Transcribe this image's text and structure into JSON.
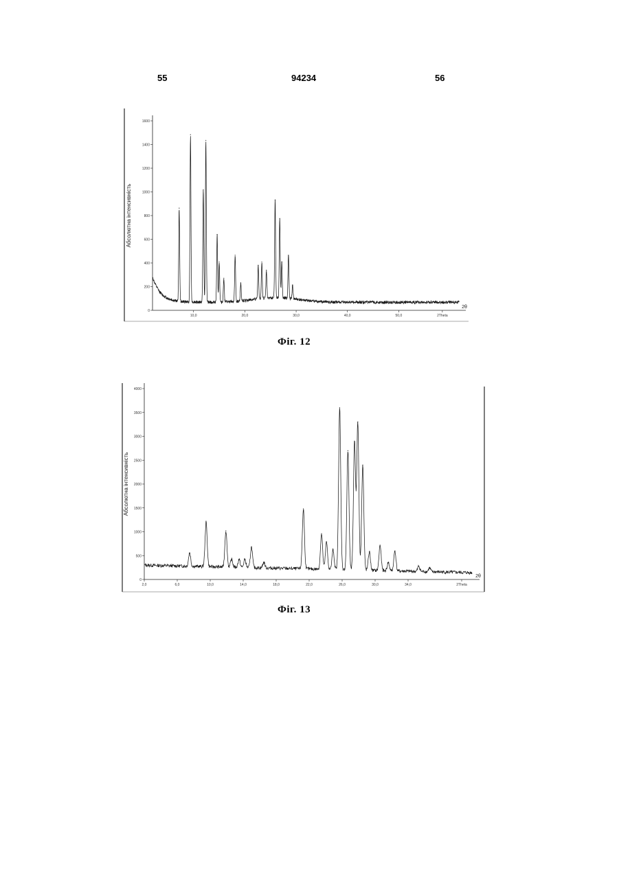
{
  "header": {
    "left_page": "55",
    "doc_number": "94234",
    "right_page": "56"
  },
  "figures": [
    {
      "caption": "Фіг. 12",
      "chart_data": {
        "type": "line",
        "ylabel": "Абсолютна інтенсивність",
        "xlabel": "2θ",
        "x_tick_labels": [
          "10,0",
          "20,0",
          "30,0",
          "40,0",
          "50,0",
          "2Theta"
        ],
        "y_tick_labels": [
          "1600",
          "1400",
          "1200",
          "1000",
          "800",
          "600",
          "400",
          "200",
          "0"
        ],
        "xlim": [
          2,
          62
        ],
        "ylim": [
          0,
          1650
        ],
        "grid": false,
        "peaks": [
          {
            "x": 7.2,
            "y": 890
          },
          {
            "x": 9.4,
            "y": 1530
          },
          {
            "x": 11.9,
            "y": 1050
          },
          {
            "x": 12.4,
            "y": 1480
          },
          {
            "x": 14.6,
            "y": 660
          },
          {
            "x": 15.0,
            "y": 420
          },
          {
            "x": 15.9,
            "y": 280
          },
          {
            "x": 18.1,
            "y": 480
          },
          {
            "x": 19.2,
            "y": 240
          },
          {
            "x": 22.6,
            "y": 390
          },
          {
            "x": 23.3,
            "y": 420
          },
          {
            "x": 24.2,
            "y": 350
          },
          {
            "x": 25.9,
            "y": 960
          },
          {
            "x": 26.8,
            "y": 800
          },
          {
            "x": 27.2,
            "y": 420
          },
          {
            "x": 28.5,
            "y": 480
          },
          {
            "x": 29.3,
            "y": 220
          }
        ]
      }
    },
    {
      "caption": "Фіг. 13",
      "chart_data": {
        "type": "line",
        "ylabel": "Абсолютна інтенсивність",
        "xlabel": "2θ",
        "x_tick_labels": [
          "2,0",
          "6,0",
          "10,0",
          "14,0",
          "18,0",
          "22,0",
          "26,0",
          "30,0",
          "34,0",
          "2Theta"
        ],
        "y_tick_labels": [
          "4000",
          "3500",
          "3000",
          "2500",
          "2000",
          "1500",
          "1000",
          "500",
          "0"
        ],
        "xlim": [
          2,
          42
        ],
        "ylim": [
          0,
          4000
        ],
        "grid": false,
        "peaks": [
          {
            "x": 7.5,
            "y": 560
          },
          {
            "x": 9.5,
            "y": 1200
          },
          {
            "x": 11.9,
            "y": 1020
          },
          {
            "x": 12.6,
            "y": 420
          },
          {
            "x": 13.5,
            "y": 420
          },
          {
            "x": 14.2,
            "y": 420
          },
          {
            "x": 15.0,
            "y": 680
          },
          {
            "x": 16.5,
            "y": 360
          },
          {
            "x": 21.3,
            "y": 1480
          },
          {
            "x": 23.5,
            "y": 960
          },
          {
            "x": 24.1,
            "y": 780
          },
          {
            "x": 24.9,
            "y": 620
          },
          {
            "x": 25.7,
            "y": 3600
          },
          {
            "x": 26.7,
            "y": 2700
          },
          {
            "x": 27.5,
            "y": 2900
          },
          {
            "x": 27.9,
            "y": 3300
          },
          {
            "x": 28.5,
            "y": 2400
          },
          {
            "x": 29.3,
            "y": 580
          },
          {
            "x": 30.6,
            "y": 720
          },
          {
            "x": 31.6,
            "y": 360
          },
          {
            "x": 32.4,
            "y": 600
          },
          {
            "x": 35.3,
            "y": 280
          },
          {
            "x": 36.6,
            "y": 240
          }
        ]
      }
    }
  ]
}
